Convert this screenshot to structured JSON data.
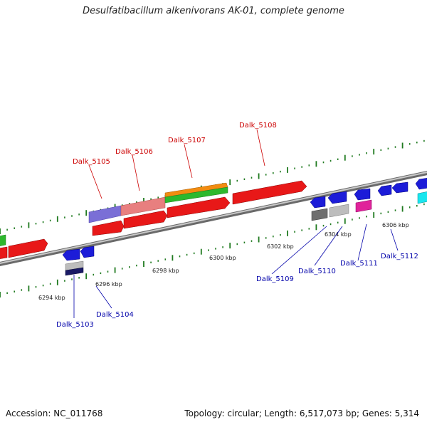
{
  "title": "Desulfatibacillum alkenivorans AK-01, complete genome",
  "footer": {
    "accession": "Accession: NC_011768",
    "summary": "Topology: circular; Length: 6,517,073 bp; Genes: 5,314"
  },
  "colors": {
    "backbone": "#8c8c8c",
    "tick": "#1f7a1f",
    "forward_label": "#cc0000",
    "reverse_label": "#0000aa",
    "red_gene": "#e81818",
    "blue_gene": "#1c1cd8",
    "green_gene": "#2db82d",
    "orange_gene": "#f28c10",
    "pink_gene": "#e87f7f",
    "purple_gene": "#7a6fd6",
    "magenta_gene": "#e0239a",
    "cyan_gene": "#19e6ee",
    "grey_gene": "#bdbdbd",
    "dark_grey_gene": "#6f6f6f",
    "navy_gene": "#1a1a66"
  },
  "scale": {
    "tick_labels": [
      "6294 kbp",
      "6296 kbp",
      "6298 kbp",
      "6300 kbp",
      "6302 kbp",
      "6304 kbp",
      "6306 kbp"
    ]
  },
  "gene_labels": [
    {
      "name": "Dalk_5103",
      "strand": "reverse"
    },
    {
      "name": "Dalk_5104",
      "strand": "reverse"
    },
    {
      "name": "Dalk_5105",
      "strand": "forward"
    },
    {
      "name": "Dalk_5106",
      "strand": "forward"
    },
    {
      "name": "Dalk_5107",
      "strand": "forward"
    },
    {
      "name": "Dalk_5108",
      "strand": "forward"
    },
    {
      "name": "Dalk_5109",
      "strand": "reverse"
    },
    {
      "name": "Dalk_5110",
      "strand": "reverse"
    },
    {
      "name": "Dalk_5111",
      "strand": "reverse"
    },
    {
      "name": "Dalk_5112",
      "strand": "reverse"
    }
  ]
}
